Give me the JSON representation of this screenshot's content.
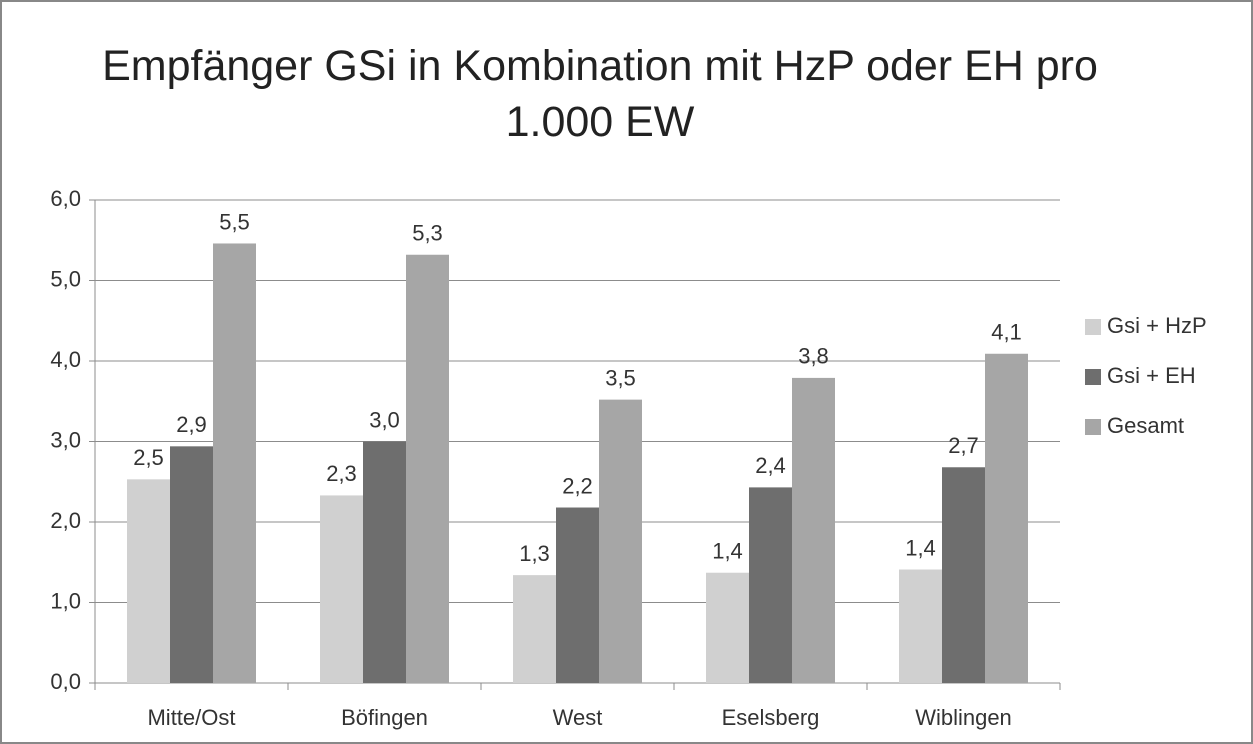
{
  "chart_data": {
    "type": "bar",
    "title": "Empfänger GSi in Kombination mit HzP oder EH pro 1.000 EW",
    "categories": [
      "Mitte/Ost",
      "Böfingen",
      "West",
      "Eselsberg",
      "Wiblingen"
    ],
    "series": [
      {
        "name": "Gsi + HzP",
        "color": "#d0d0d0",
        "values": [
          2.53,
          2.33,
          1.34,
          1.37,
          1.41
        ],
        "value_labels": [
          "2,5",
          "2,3",
          "1,3",
          "1,4",
          "1,4"
        ]
      },
      {
        "name": "Gsi + EH",
        "color": "#6e6e6e",
        "values": [
          2.94,
          3.0,
          2.18,
          2.43,
          2.68
        ],
        "value_labels": [
          "2,9",
          "3,0",
          "2,2",
          "2,4",
          "2,7"
        ]
      },
      {
        "name": "Gesamt",
        "color": "#a6a6a6",
        "values": [
          5.46,
          5.32,
          3.52,
          3.79,
          4.09
        ],
        "value_labels": [
          "5,5",
          "5,3",
          "3,5",
          "3,8",
          "4,1"
        ]
      }
    ],
    "ylim": [
      0,
      6
    ],
    "yticks": [
      {
        "value": 0,
        "label": "0,0"
      },
      {
        "value": 1,
        "label": "1,0"
      },
      {
        "value": 2,
        "label": "2,0"
      },
      {
        "value": 3,
        "label": "3,0"
      },
      {
        "value": 4,
        "label": "4,0"
      },
      {
        "value": 5,
        "label": "5,0"
      },
      {
        "value": 6,
        "label": "6,0"
      }
    ],
    "grid": true,
    "legend": "right"
  }
}
